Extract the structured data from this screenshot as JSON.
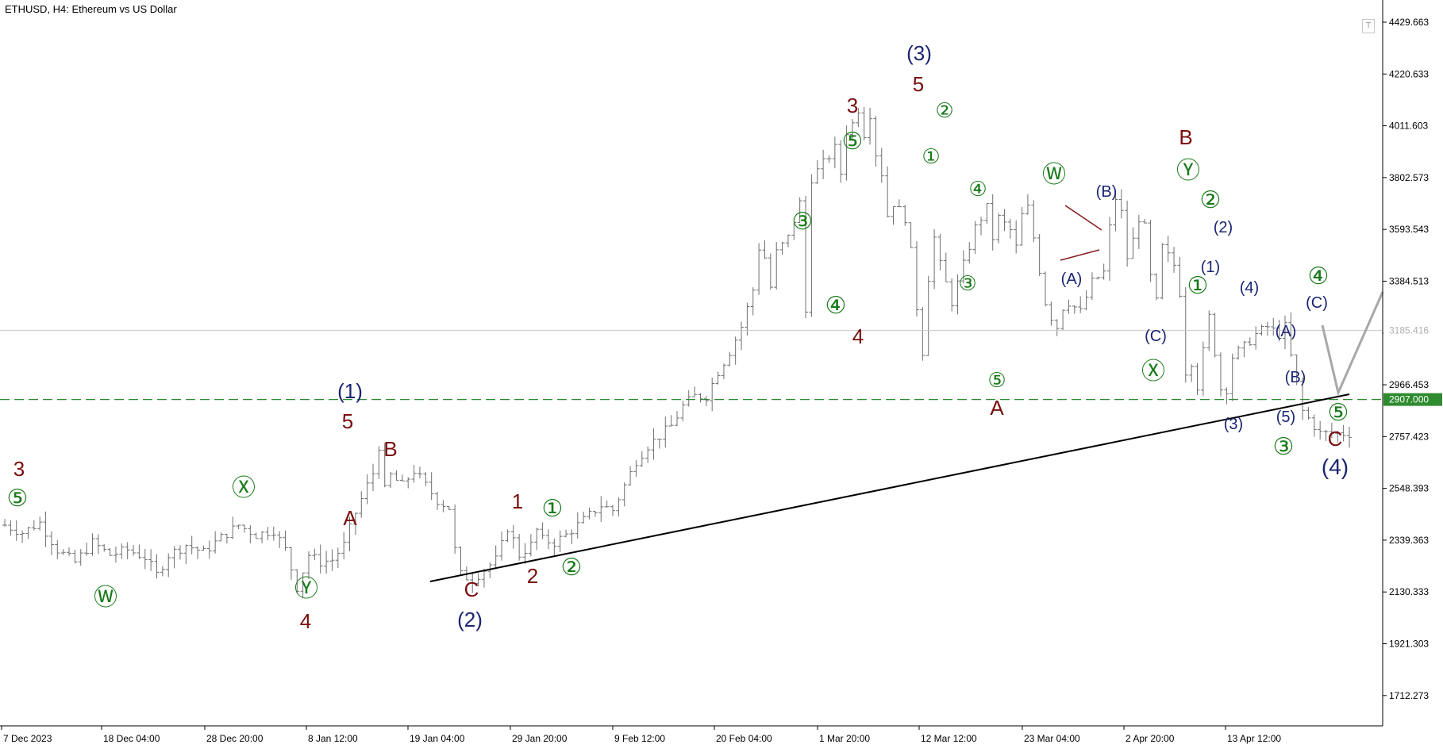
{
  "header": {
    "title": "ETHUSD, H4:  Ethereum vs US Dollar",
    "template_button": "T"
  },
  "colors": {
    "candles": "#6e6e6e",
    "support_line": "#000000",
    "level_line": "#2e8b2e",
    "projection": "#a8a8a8",
    "current_line": "#c8c8c8",
    "wave_primary": "#1a2472",
    "wave_intermediate": "#7a0e0e",
    "wave_minor": "#1a7a1a"
  },
  "chart_data": {
    "type": "candlestick",
    "symbol": "ETHUSD",
    "timeframe": "H4",
    "ylim": [
      1590,
      4500
    ],
    "y_ticks": [
      "4429.663",
      "4220.633",
      "4011.603",
      "3802.573",
      "3593.543",
      "3384.513",
      "3175.483",
      "2966.453",
      "2757.423",
      "2548.393",
      "2339.363",
      "2130.333",
      "1921.303",
      "1712.273"
    ],
    "x_ticks": [
      "7 Dec 2023",
      "18 Dec 04:00",
      "28 Dec 20:00",
      "8 Jan 12:00",
      "19 Jan 04:00",
      "29 Jan 20:00",
      "9 Feb 12:00",
      "20 Feb 04:00",
      "1 Mar 20:00",
      "12 Mar 12:00",
      "23 Mar 04:00",
      "2 Apr 20:00",
      "13 Apr 12:00"
    ],
    "current_price": "3185.416",
    "support_level": "2907.000",
    "price_path": [
      [
        0,
        2400
      ],
      [
        3,
        2370
      ],
      [
        6,
        2410
      ],
      [
        9,
        2300
      ],
      [
        12,
        2250
      ],
      [
        15,
        2330
      ],
      [
        18,
        2280
      ],
      [
        21,
        2300
      ],
      [
        24,
        2270
      ],
      [
        26,
        2200
      ],
      [
        28,
        2280
      ],
      [
        31,
        2320
      ],
      [
        34,
        2290
      ],
      [
        37,
        2350
      ],
      [
        40,
        2400
      ],
      [
        43,
        2360
      ],
      [
        46,
        2380
      ],
      [
        48,
        2300
      ],
      [
        50,
        2150
      ],
      [
        52,
        2280
      ],
      [
        54,
        2250
      ],
      [
        56,
        2260
      ],
      [
        58,
        2320
      ],
      [
        60,
        2450
      ],
      [
        62,
        2560
      ],
      [
        63,
        2610
      ],
      [
        64,
        2720
      ],
      [
        65,
        2540
      ],
      [
        66,
        2600
      ],
      [
        68,
        2560
      ],
      [
        70,
        2620
      ],
      [
        72,
        2560
      ],
      [
        74,
        2500
      ],
      [
        76,
        2470
      ],
      [
        77,
        2300
      ],
      [
        78,
        2200
      ],
      [
        80,
        2180
      ],
      [
        82,
        2220
      ],
      [
        84,
        2260
      ],
      [
        85,
        2320
      ],
      [
        86,
        2390
      ],
      [
        87,
        2340
      ],
      [
        88,
        2280
      ],
      [
        90,
        2320
      ],
      [
        91,
        2380
      ],
      [
        92,
        2340
      ],
      [
        94,
        2330
      ],
      [
        96,
        2360
      ],
      [
        98,
        2400
      ],
      [
        100,
        2440
      ],
      [
        102,
        2480
      ],
      [
        104,
        2460
      ],
      [
        106,
        2560
      ],
      [
        108,
        2660
      ],
      [
        110,
        2720
      ],
      [
        112,
        2760
      ],
      [
        114,
        2800
      ],
      [
        116,
        2880
      ],
      [
        118,
        2920
      ],
      [
        120,
        2920
      ],
      [
        122,
        3020
      ],
      [
        124,
        3100
      ],
      [
        126,
        3200
      ],
      [
        128,
        3350
      ],
      [
        129,
        3520
      ],
      [
        130,
        3480
      ],
      [
        131,
        3360
      ],
      [
        132,
        3500
      ],
      [
        134,
        3560
      ],
      [
        136,
        3700
      ],
      [
        137,
        3260
      ],
      [
        138,
        3800
      ],
      [
        140,
        3860
      ],
      [
        142,
        3920
      ],
      [
        143,
        3820
      ],
      [
        144,
        3990
      ],
      [
        145,
        4020
      ],
      [
        146,
        4080
      ],
      [
        147,
        3980
      ],
      [
        148,
        4060
      ],
      [
        149,
        3900
      ],
      [
        150,
        3820
      ],
      [
        151,
        3650
      ],
      [
        152,
        3700
      ],
      [
        154,
        3640
      ],
      [
        155,
        3500
      ],
      [
        156,
        3280
      ],
      [
        157,
        3100
      ],
      [
        158,
        3400
      ],
      [
        159,
        3560
      ],
      [
        160,
        3450
      ],
      [
        162,
        3300
      ],
      [
        164,
        3450
      ],
      [
        166,
        3600
      ],
      [
        168,
        3680
      ],
      [
        169,
        3560
      ],
      [
        170,
        3640
      ],
      [
        172,
        3590
      ],
      [
        173,
        3520
      ],
      [
        174,
        3650
      ],
      [
        175,
        3680
      ],
      [
        176,
        3560
      ],
      [
        178,
        3300
      ],
      [
        179,
        3240
      ],
      [
        180,
        3200
      ],
      [
        181,
        3280
      ],
      [
        182,
        3300
      ],
      [
        184,
        3260
      ],
      [
        186,
        3380
      ],
      [
        188,
        3420
      ],
      [
        189,
        3600
      ],
      [
        190,
        3720
      ],
      [
        191,
        3660
      ],
      [
        192,
        3480
      ],
      [
        193,
        3550
      ],
      [
        194,
        3640
      ],
      [
        195,
        3600
      ],
      [
        196,
        3400
      ],
      [
        197,
        3300
      ],
      [
        198,
        3520
      ],
      [
        200,
        3450
      ],
      [
        201,
        3340
      ],
      [
        202,
        3020
      ],
      [
        203,
        3060
      ],
      [
        204,
        2960
      ],
      [
        206,
        3240
      ],
      [
        207,
        3100
      ],
      [
        208,
        2950
      ],
      [
        209,
        2950
      ],
      [
        210,
        3080
      ],
      [
        212,
        3120
      ],
      [
        214,
        3170
      ],
      [
        216,
        3200
      ],
      [
        218,
        3170
      ],
      [
        219,
        3200
      ],
      [
        220,
        3080
      ],
      [
        222,
        2860
      ],
      [
        225,
        2770
      ]
    ]
  },
  "wave_labels": {
    "p1": "(1)",
    "p2": "(2)",
    "p3": "(3)",
    "p4": "(4)",
    "i3": "3",
    "i4a": "4",
    "i5": "5",
    "iA": "A",
    "iB": "B",
    "iC": "C",
    "i1": "1",
    "i2": "2",
    "i3b": "3",
    "i4b": "4",
    "i5b": "5",
    "iA2": "A",
    "iB2": "B",
    "iC2": "C",
    "m5a": "⑤",
    "mW": "Ⓦ",
    "mX": "Ⓧ",
    "mY": "Ⓨ",
    "m1": "①",
    "m2": "②",
    "m3": "③",
    "m4": "④",
    "m5b": "⑤",
    "m2b": "②",
    "m1s": "①",
    "m4s": "④",
    "m3s": "③",
    "m5s": "⑤",
    "mW2": "Ⓦ",
    "mX2": "Ⓧ",
    "mY2": "Ⓨ",
    "m1c": "①",
    "m2c": "②",
    "m3c": "③",
    "m4c": "④",
    "m5c": "⑤",
    "nA": "(A)",
    "nB": "(B)",
    "nC": "(C)",
    "n1": "(1)",
    "n2": "(2)",
    "n3": "(3)",
    "n4": "(4)",
    "n5": "(5)",
    "nA2": "(A)",
    "nB2": "(B)",
    "nC2": "(C)"
  }
}
